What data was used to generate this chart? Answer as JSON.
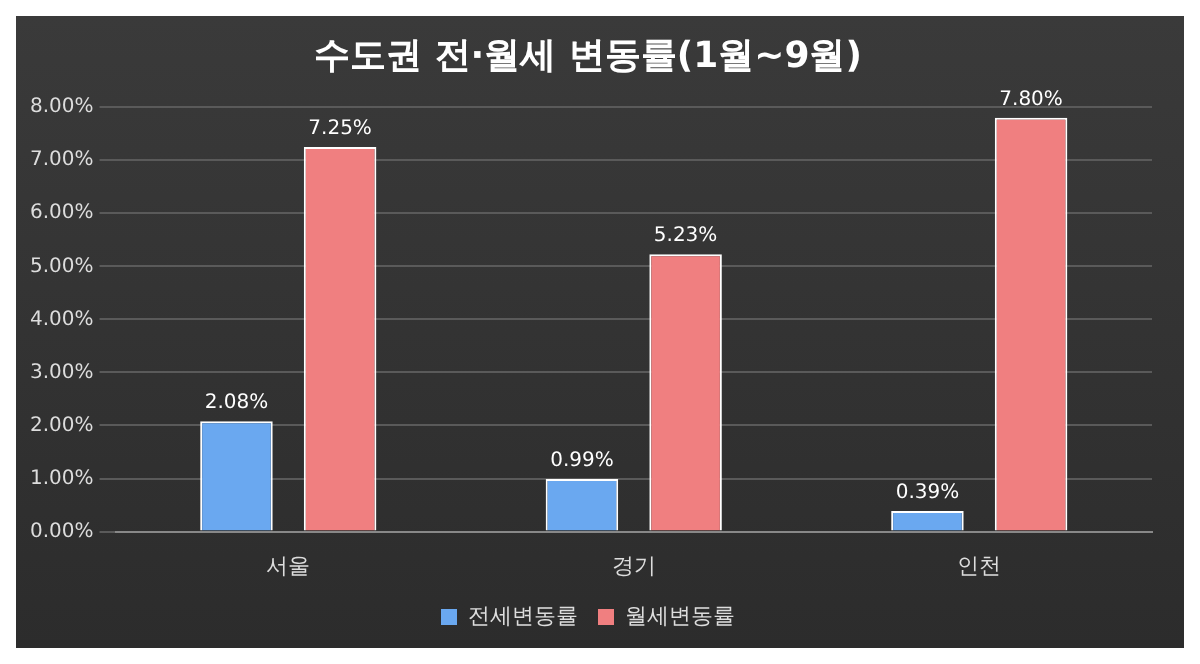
{
  "chart_data": {
    "type": "bar",
    "title": "수도권 전·월세 변동률(1월~9월)",
    "categories": [
      "서울",
      "경기",
      "인천"
    ],
    "series": [
      {
        "name": "전세변동률",
        "color": "#6aa8f0",
        "values": [
          2.08,
          0.99,
          0.39
        ],
        "value_labels": [
          "2.08%",
          "0.99%",
          "0.39%"
        ]
      },
      {
        "name": "월세변동률",
        "color": "#f07f80",
        "values": [
          7.25,
          5.23,
          7.8
        ],
        "value_labels": [
          "7.25%",
          "5.23%",
          "7.80%"
        ]
      }
    ],
    "ylim": [
      0,
      8
    ],
    "yticks": [
      {
        "value": 0,
        "label": "0.00%"
      },
      {
        "value": 1,
        "label": "1.00%"
      },
      {
        "value": 2,
        "label": "2.00%"
      },
      {
        "value": 3,
        "label": "3.00%"
      },
      {
        "value": 4,
        "label": "4.00%"
      },
      {
        "value": 5,
        "label": "5.00%"
      },
      {
        "value": 6,
        "label": "6.00%"
      },
      {
        "value": 7,
        "label": "7.00%"
      },
      {
        "value": 8,
        "label": "8.00%"
      }
    ],
    "grid": "y",
    "legend": "bottom"
  }
}
